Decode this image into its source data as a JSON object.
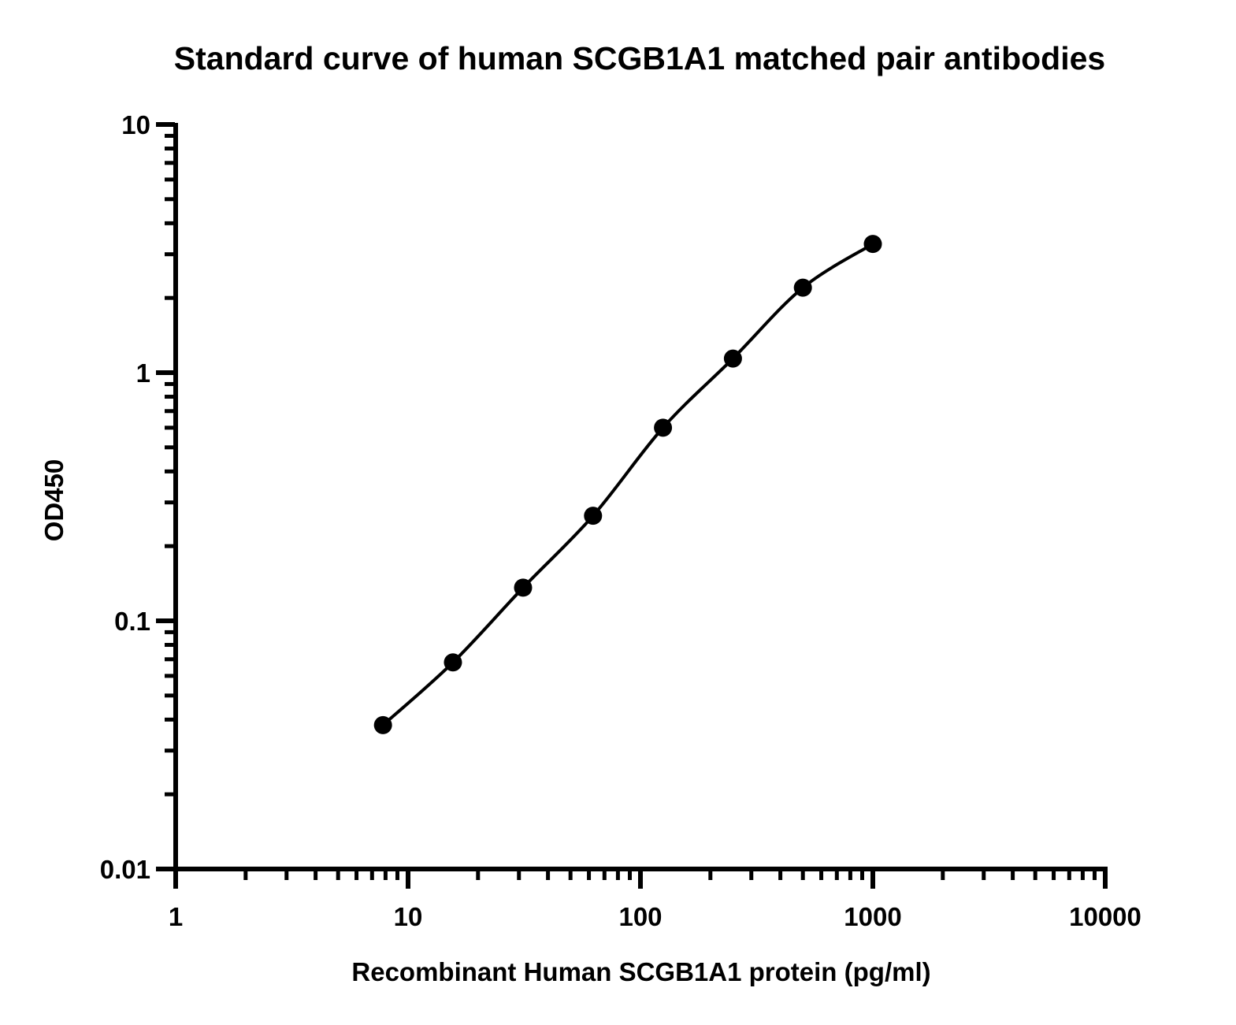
{
  "chart_data": {
    "type": "scatter",
    "title": "Standard curve of human SCGB1A1 matched pair antibodies",
    "xlabel": "Recombinant Human SCGB1A1 protein (pg/ml)",
    "ylabel": "OD450",
    "xscale": "log",
    "yscale": "log",
    "xlim": [
      1,
      10000
    ],
    "ylim": [
      0.01,
      10
    ],
    "x_ticks": [
      "1",
      "10",
      "100",
      "1000",
      "10000"
    ],
    "y_ticks": [
      "10",
      "1",
      "0.1",
      "0.01"
    ],
    "grid": false,
    "legend": "none",
    "fit_line": true,
    "colors": {
      "points": "#000000",
      "line": "#000000",
      "axis": "#000000"
    },
    "series": [
      {
        "x": [
          7.8,
          15.6,
          31.25,
          62.5,
          125,
          250,
          500,
          1000
        ],
        "y": [
          0.038,
          0.068,
          0.136,
          0.265,
          0.6,
          1.14,
          2.2,
          3.3
        ]
      }
    ]
  }
}
